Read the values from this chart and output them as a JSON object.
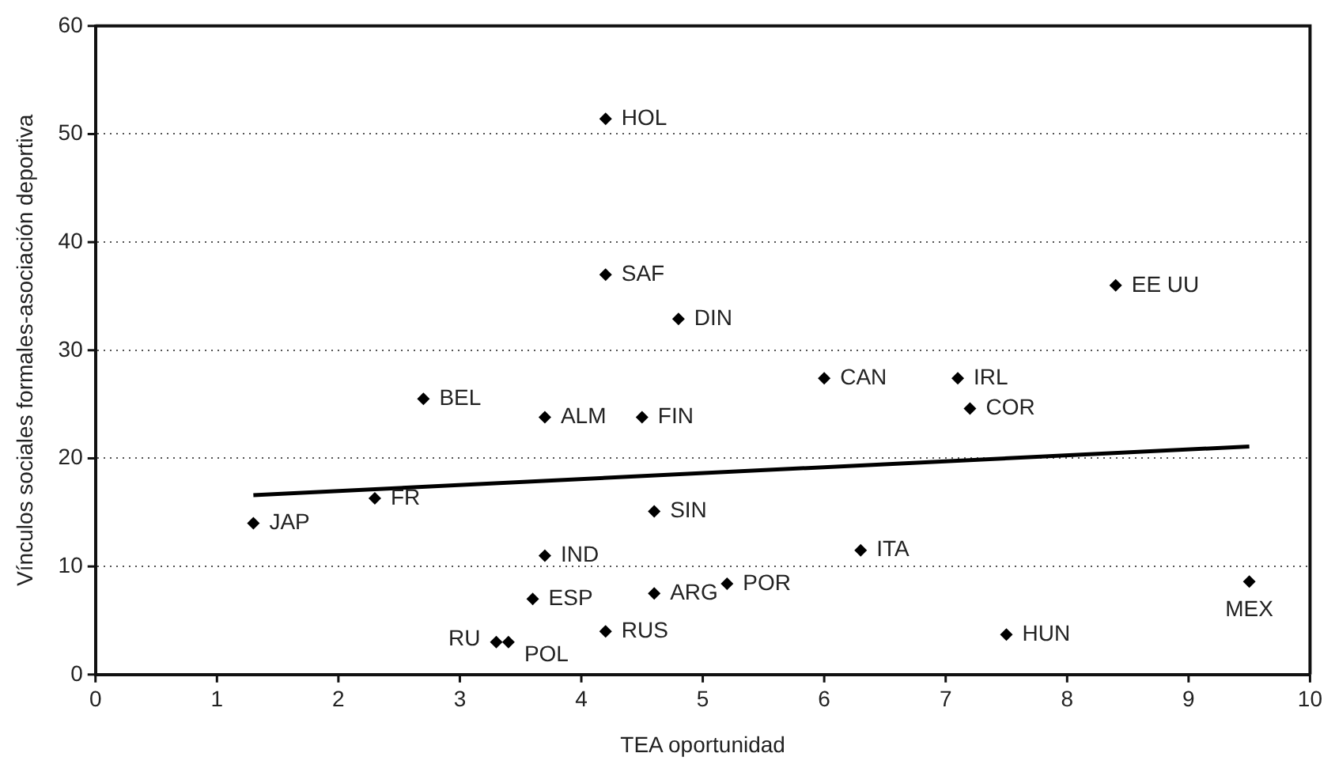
{
  "chart_data": {
    "type": "scatter",
    "xlabel": "TEA oportunidad",
    "ylabel": "Vínculos sociales formales-asociación deportiva",
    "xlim": [
      0,
      10
    ],
    "xticks": [
      0,
      1,
      2,
      3,
      4,
      5,
      6,
      7,
      8,
      9,
      10
    ],
    "ylim": [
      0,
      60
    ],
    "yticks": [
      0,
      10,
      20,
      30,
      40,
      50,
      60
    ],
    "grid": "y",
    "legend": false,
    "marker": "diamond",
    "series": [
      {
        "color": "#000000",
        "x": [
          4.2,
          4.2,
          4.8,
          8.4,
          2.7,
          3.7,
          4.5,
          6.0,
          7.1,
          7.2,
          1.3,
          2.3,
          4.6,
          3.7,
          6.3,
          5.2,
          9.5,
          4.6,
          3.6,
          4.2,
          3.3,
          3.4,
          7.5
        ],
        "values": [
          51.4,
          37.0,
          32.9,
          36.0,
          25.5,
          23.8,
          23.8,
          27.4,
          27.4,
          24.6,
          14.0,
          16.3,
          15.1,
          11.0,
          11.5,
          8.4,
          8.6,
          7.5,
          7.0,
          4.0,
          3.0,
          3.0,
          3.7
        ]
      },
      {
        "type": "line",
        "color": "#000000",
        "line_style": "solid",
        "marker": "none",
        "x": [
          1.3,
          9.5
        ],
        "values": [
          16.6,
          21.1
        ]
      }
    ],
    "annotations": [
      {
        "text": "HOL",
        "x": 4.2,
        "y": 51.4
      },
      {
        "text": "SAF",
        "x": 4.2,
        "y": 37.0
      },
      {
        "text": "DIN",
        "x": 4.8,
        "y": 32.9
      },
      {
        "text": "EE UU",
        "x": 8.4,
        "y": 36.0
      },
      {
        "text": "BEL",
        "x": 2.7,
        "y": 25.5
      },
      {
        "text": "ALM",
        "x": 3.7,
        "y": 23.8
      },
      {
        "text": "FIN",
        "x": 4.5,
        "y": 23.8
      },
      {
        "text": "CAN",
        "x": 6.0,
        "y": 27.4
      },
      {
        "text": "IRL",
        "x": 7.1,
        "y": 27.4
      },
      {
        "text": "COR",
        "x": 7.2,
        "y": 24.6
      },
      {
        "text": "JAP",
        "x": 1.3,
        "y": 14.0
      },
      {
        "text": "FR",
        "x": 2.3,
        "y": 16.3
      },
      {
        "text": "SIN",
        "x": 4.6,
        "y": 15.1
      },
      {
        "text": "IND",
        "x": 3.7,
        "y": 11.0
      },
      {
        "text": "ITA",
        "x": 6.3,
        "y": 11.5
      },
      {
        "text": "POR",
        "x": 5.2,
        "y": 8.4
      },
      {
        "text": "MEX",
        "x": 9.5,
        "y": 8.6
      },
      {
        "text": "ARG",
        "x": 4.6,
        "y": 7.5
      },
      {
        "text": "ESP",
        "x": 3.6,
        "y": 7.0
      },
      {
        "text": "RUS",
        "x": 4.2,
        "y": 4.0
      },
      {
        "text": "RU",
        "x": 3.3,
        "y": 3.0
      },
      {
        "text": "POL",
        "x": 3.4,
        "y": 3.0
      },
      {
        "text": "HUN",
        "x": 7.5,
        "y": 3.7
      }
    ]
  }
}
